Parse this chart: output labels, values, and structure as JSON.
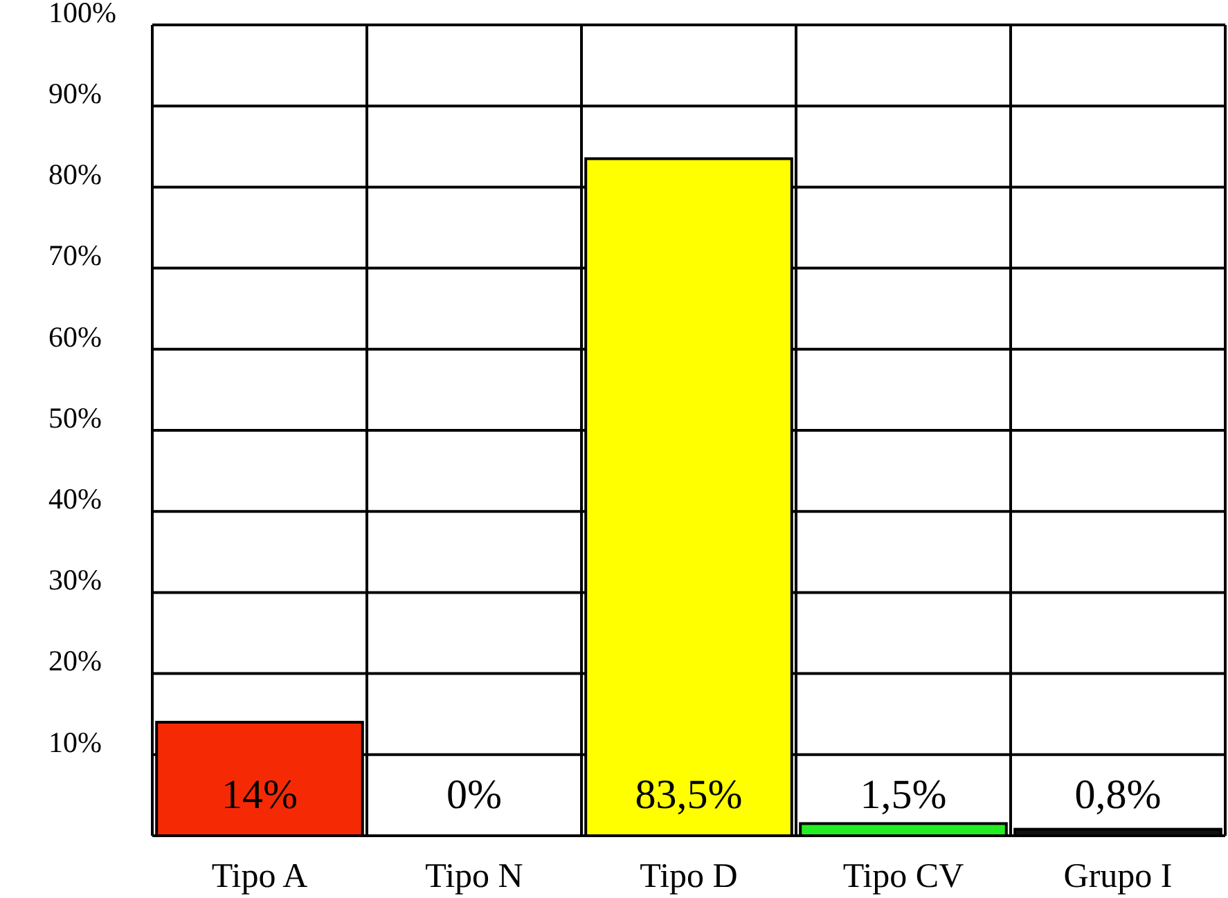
{
  "chart_data": {
    "type": "bar",
    "categories": [
      "Tipo A",
      "Tipo N",
      "Tipo D",
      "Tipo CV",
      "Grupo I"
    ],
    "values": [
      14,
      0,
      83.5,
      1.5,
      0.8
    ],
    "colors": [
      "#f52a05",
      "#ffffff",
      "#ffff00",
      "#22ee22",
      "#111111"
    ],
    "value_labels": [
      "14%",
      "0%",
      "83,5%",
      "1,5%",
      "0,8%"
    ],
    "ylim": [
      0,
      100
    ],
    "yticks": [
      {
        "value": 0,
        "label": null
      },
      {
        "value": 10,
        "label": "10%"
      },
      {
        "value": 20,
        "label": "20%"
      },
      {
        "value": 30,
        "label": "30%"
      },
      {
        "value": 40,
        "label": "40%"
      },
      {
        "value": 50,
        "label": "50%"
      },
      {
        "value": 60,
        "label": "60%"
      },
      {
        "value": 70,
        "label": "70%"
      },
      {
        "value": 80,
        "label": "80%"
      },
      {
        "value": 90,
        "label": "90%"
      },
      {
        "value": 100,
        "label": "100%"
      }
    ],
    "grid": true
  }
}
